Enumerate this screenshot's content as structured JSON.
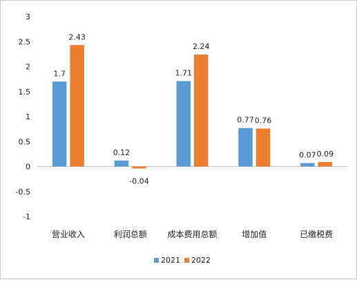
{
  "chart_data": {
    "type": "bar",
    "categories": [
      "营业收入",
      "利润总额",
      "成本费用总额",
      "增加值",
      "已缴税费"
    ],
    "series": [
      {
        "name": "2021",
        "color": "#5B9BD5",
        "values": [
          1.7,
          0.12,
          1.71,
          0.77,
          0.07
        ]
      },
      {
        "name": "2022",
        "color": "#ED7D31",
        "values": [
          2.43,
          -0.04,
          2.24,
          0.76,
          0.09
        ]
      }
    ],
    "data_labels": [
      [
        "1.7",
        "0.12",
        "1.71",
        "0.77",
        "0.07"
      ],
      [
        "2.43",
        "-0.04",
        "2.24",
        "0.76",
        "0.09"
      ]
    ],
    "ylim": [
      -1,
      3
    ],
    "yticks": [
      -1,
      -0.5,
      0,
      0.5,
      1,
      1.5,
      2,
      2.5,
      3
    ],
    "ytick_labels": [
      "-1",
      "-0.5",
      "0",
      "0.5",
      "1",
      "1.5",
      "2",
      "2.5",
      "3"
    ],
    "grid": false,
    "legend": {
      "position": "bottom",
      "labels": [
        "2021",
        "2022"
      ]
    },
    "title": "",
    "xlabel": "",
    "ylabel": ""
  }
}
